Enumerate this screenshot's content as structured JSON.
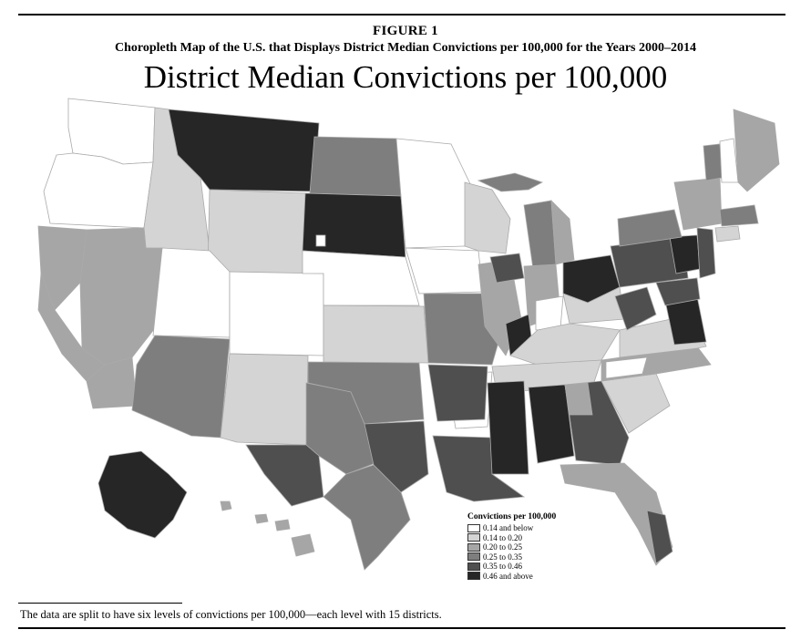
{
  "figure": {
    "label": "FIGURE 1",
    "caption": "Choropleth Map of the U.S. that Displays District Median Convictions per 100,000 for the Years 2000–2014",
    "map_title": "District Median Convictions per 100,000"
  },
  "legend": {
    "title": "Convictions per 100,000",
    "items": [
      {
        "label": "0.14 and below",
        "color": "#ffffff"
      },
      {
        "label": "0.14 to 0.20",
        "color": "#d4d4d4"
      },
      {
        "label": "0.20 to 0.25",
        "color": "#a6a6a6"
      },
      {
        "label": "0.25 to 0.35",
        "color": "#7e7e7e"
      },
      {
        "label": "0.35 to 0.46",
        "color": "#4f4f4f"
      },
      {
        "label": "0.46 and above",
        "color": "#262626"
      }
    ]
  },
  "footnote": "The data are split to have six levels of convictions per 100,000—each level with 15 districts."
}
